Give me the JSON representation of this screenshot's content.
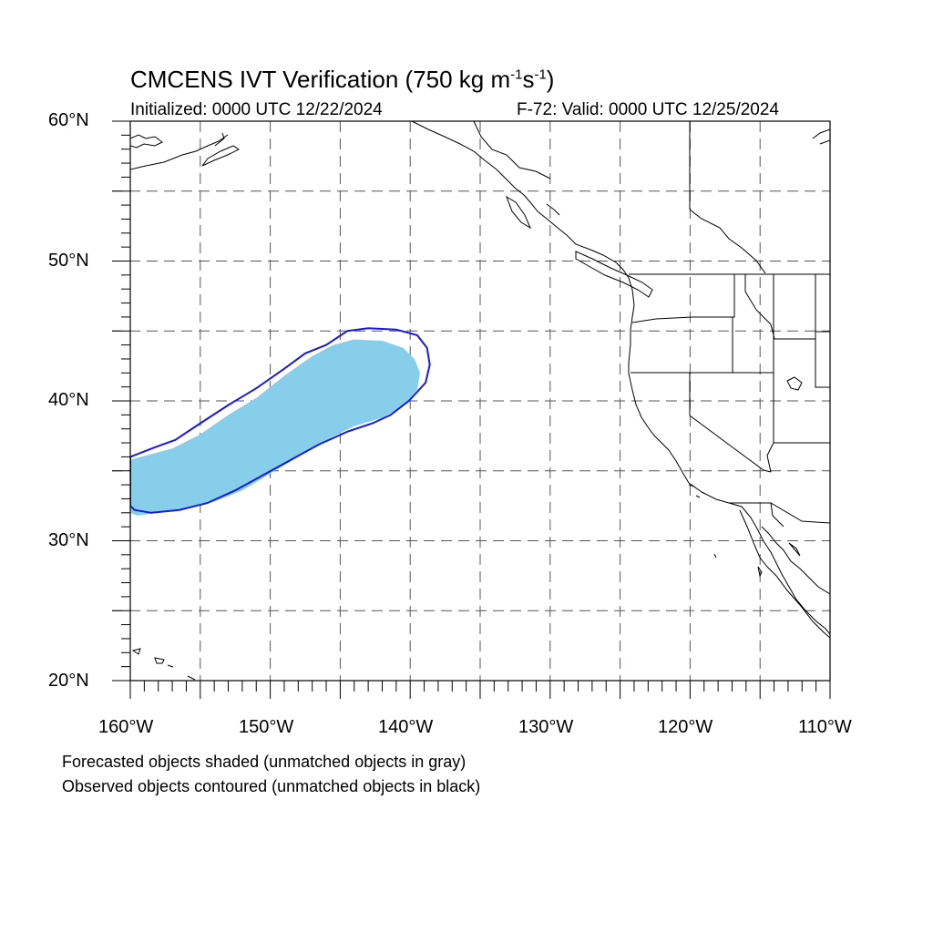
{
  "header": {
    "title_text": "CMCENS IVT Verification (750 kg m",
    "title_exp1": "-1",
    "title_mid": "s",
    "title_exp2": "-1",
    "title_end": ")",
    "initialized": "Initialized: 0000 UTC 12/22/2024",
    "valid": "F-72: Valid: 0000 UTC 12/25/2024"
  },
  "axes": {
    "lat_labels": [
      "60°N",
      "50°N",
      "40°N",
      "30°N",
      "20°N"
    ],
    "lon_labels": [
      "160°W",
      "150°W",
      "140°W",
      "130°W",
      "120°W",
      "110°W"
    ],
    "lon_range": [
      -160,
      -110
    ],
    "lat_range": [
      20,
      60
    ],
    "grid": true
  },
  "legend_notes": [
    "Forecasted objects shaded (unmatched objects in gray)",
    "Observed objects contoured (unmatched objects in black)"
  ],
  "colors": {
    "forecast_fill": "#87ceea",
    "observed_contour": "#1a1adf",
    "coastline": "#000000",
    "grid": "#555555"
  },
  "objects": {
    "forecast": [
      [
        -160,
        32
      ],
      [
        -159.5,
        31.8
      ],
      [
        -158,
        32
      ],
      [
        -156,
        32.3
      ],
      [
        -154,
        32.8
      ],
      [
        -152,
        33.6
      ],
      [
        -150,
        34.8
      ],
      [
        -148,
        36
      ],
      [
        -146,
        37.2
      ],
      [
        -144,
        38.2
      ],
      [
        -142,
        38.8
      ],
      [
        -140.5,
        39.6
      ],
      [
        -139.5,
        40.8
      ],
      [
        -139.3,
        42
      ],
      [
        -139.7,
        43
      ],
      [
        -140.5,
        43.8
      ],
      [
        -142,
        44.3
      ],
      [
        -144,
        44.4
      ],
      [
        -145.5,
        44
      ],
      [
        -147,
        43.2
      ],
      [
        -149,
        41.8
      ],
      [
        -151,
        40.2
      ],
      [
        -153,
        39
      ],
      [
        -155,
        37.6
      ],
      [
        -157,
        36.6
      ],
      [
        -160,
        35.8
      ]
    ],
    "observed": [
      [
        -160,
        32.5
      ],
      [
        -159.7,
        32.2
      ],
      [
        -158.5,
        32
      ],
      [
        -156.5,
        32.2
      ],
      [
        -154.5,
        32.7
      ],
      [
        -152.5,
        33.6
      ],
      [
        -150.5,
        34.7
      ],
      [
        -148.5,
        35.8
      ],
      [
        -146.5,
        36.9
      ],
      [
        -144.5,
        37.8
      ],
      [
        -142.7,
        38.4
      ],
      [
        -141.4,
        39
      ],
      [
        -140.1,
        40
      ],
      [
        -138.9,
        41.3
      ],
      [
        -138.6,
        42.6
      ],
      [
        -138.8,
        43.8
      ],
      [
        -139.5,
        44.7
      ],
      [
        -141,
        45.1
      ],
      [
        -143,
        45.2
      ],
      [
        -144.5,
        45
      ],
      [
        -146,
        44
      ],
      [
        -147.5,
        43.4
      ],
      [
        -149,
        42.3
      ],
      [
        -151,
        40.9
      ],
      [
        -153,
        39.7
      ],
      [
        -155,
        38.4
      ],
      [
        -156.8,
        37.2
      ],
      [
        -158.2,
        36.7
      ],
      [
        -160,
        36
      ]
    ]
  }
}
